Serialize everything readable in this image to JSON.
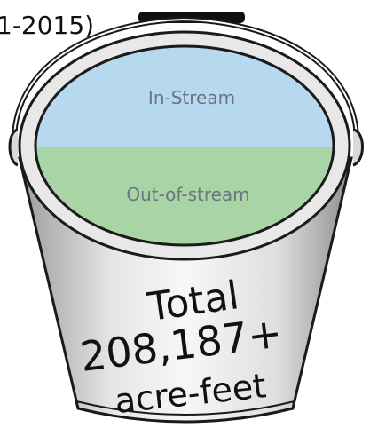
{
  "header": {
    "year_fragment": "1-2015)"
  },
  "bucket": {
    "regions": [
      {
        "id": "in_stream",
        "label": "In-Stream",
        "color": "#b7d9ef"
      },
      {
        "id": "out_of_stream",
        "label": "Out-of-stream",
        "color": "#a8d4a6"
      }
    ],
    "total": {
      "line1": "Total",
      "line2": "208,187+",
      "line3": "acre-feet"
    },
    "colors": {
      "body_light": "#f2f2f2",
      "body_dark": "#a9a9a9",
      "outline": "#1a1a1a",
      "label_text": "#6b7580"
    }
  }
}
